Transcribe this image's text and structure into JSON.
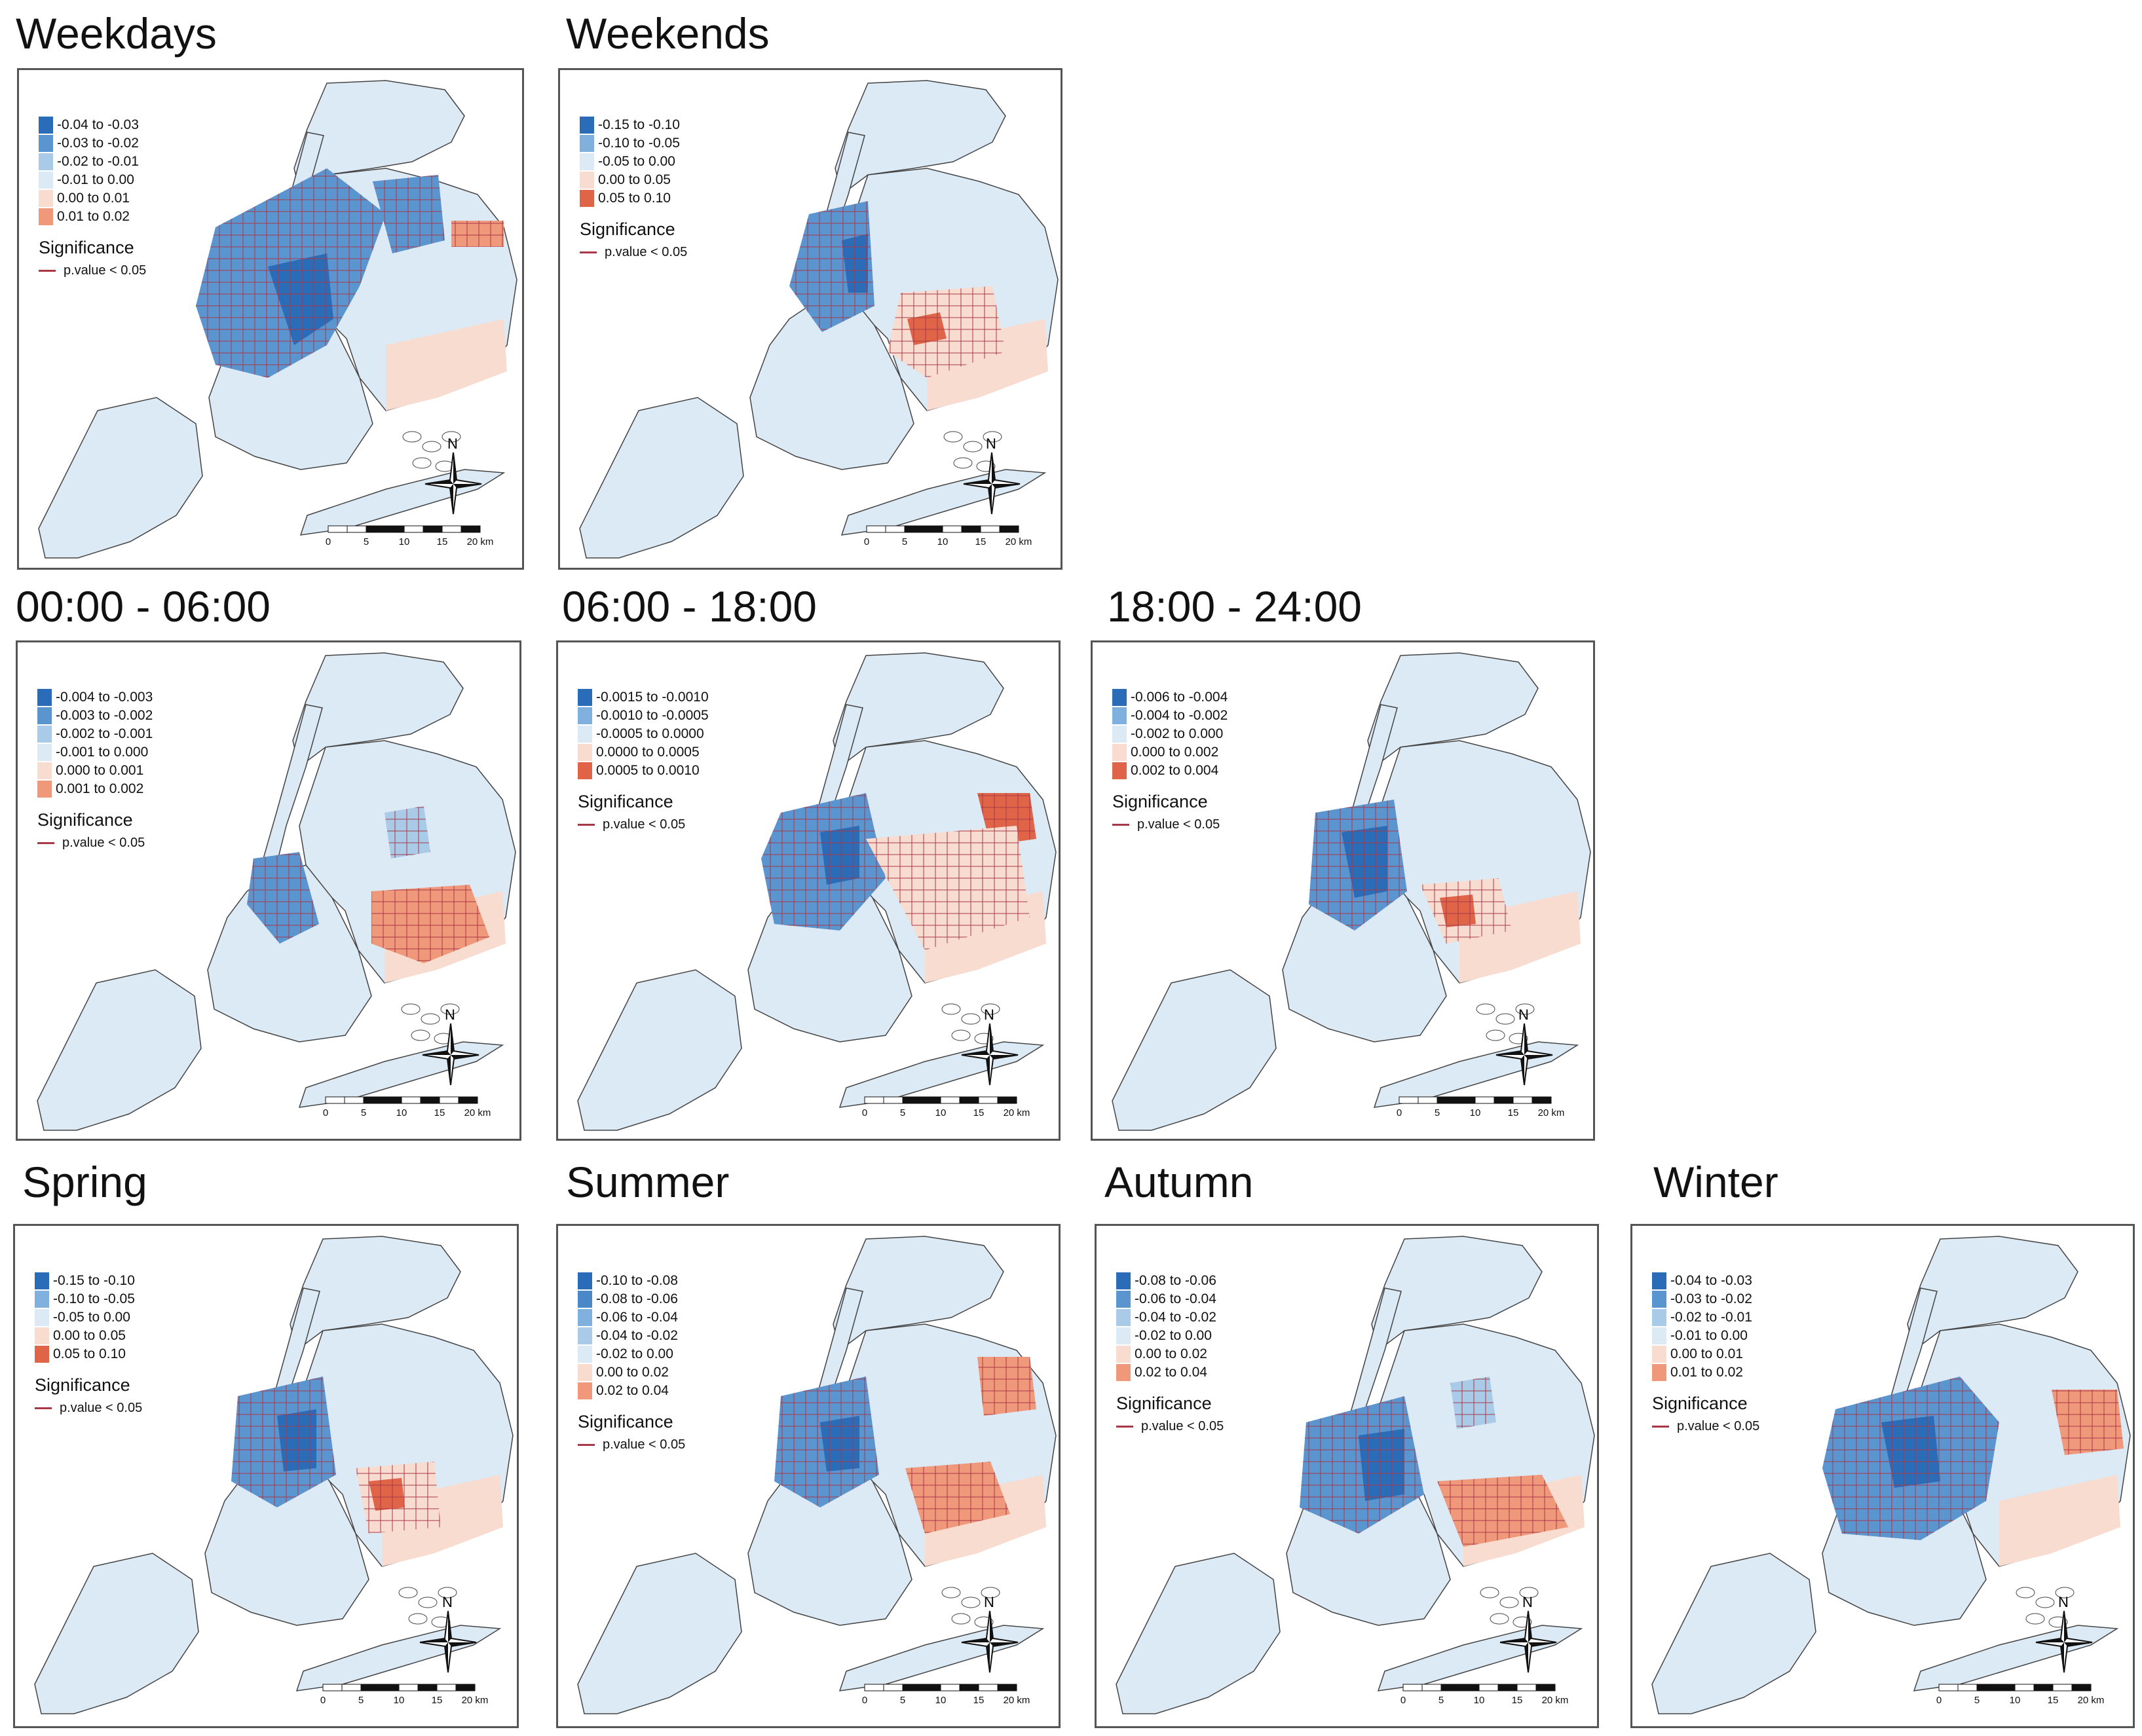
{
  "colors": {
    "blue_dark": "#2b6cb8",
    "blue_mid": "#5b95cf",
    "blue_light": "#a9cbe8",
    "blue_pale": "#dceaf5",
    "red_pale": "#f8dcd0",
    "red_mid": "#f0987a",
    "red_dark": "#e06548",
    "significance_line": "#a83848"
  },
  "common": {
    "significance_title": "Significance",
    "significance_label": "p.value < 0.05",
    "north_label": "N",
    "scale_ticks": [
      "0",
      "5",
      "10",
      "15",
      "20 km"
    ]
  },
  "panels": [
    {
      "title": "Weekdays",
      "legend": [
        {
          "label": "-0.04 to -0.03",
          "color": "#2b6cb8"
        },
        {
          "label": "-0.03 to -0.02",
          "color": "#5b95cf"
        },
        {
          "label": "-0.02 to -0.01",
          "color": "#a9cbe8"
        },
        {
          "label": "-0.01 to 0.00",
          "color": "#dceaf5"
        },
        {
          "label": "0.00 to 0.01",
          "color": "#f8dcd0"
        },
        {
          "label": "0.01 to 0.02",
          "color": "#f0987a"
        }
      ]
    },
    {
      "title": "Weekends",
      "legend": [
        {
          "label": "-0.15 to -0.10",
          "color": "#2b6cb8"
        },
        {
          "label": "-0.10 to -0.05",
          "color": "#7fb0de"
        },
        {
          "label": "-0.05 to 0.00",
          "color": "#dceaf5"
        },
        {
          "label": "0.00 to 0.05",
          "color": "#f8dcd0"
        },
        {
          "label": "0.05 to 0.10",
          "color": "#e06548"
        }
      ]
    },
    {
      "title": "00:00 - 06:00",
      "legend": [
        {
          "label": "-0.004 to -0.003",
          "color": "#2b6cb8"
        },
        {
          "label": "-0.003 to -0.002",
          "color": "#5b95cf"
        },
        {
          "label": "-0.002 to -0.001",
          "color": "#a9cbe8"
        },
        {
          "label": "-0.001 to 0.000",
          "color": "#dceaf5"
        },
        {
          "label": "0.000 to 0.001",
          "color": "#f8dcd0"
        },
        {
          "label": "0.001 to 0.002",
          "color": "#f0987a"
        }
      ]
    },
    {
      "title": "06:00 - 18:00",
      "legend": [
        {
          "label": "-0.0015 to -0.0010",
          "color": "#2b6cb8"
        },
        {
          "label": "-0.0010 to -0.0005",
          "color": "#7fb0de"
        },
        {
          "label": "-0.0005 to 0.0000",
          "color": "#dceaf5"
        },
        {
          "label": "0.0000 to 0.0005",
          "color": "#f8dcd0"
        },
        {
          "label": "0.0005 to 0.0010",
          "color": "#e06548"
        }
      ]
    },
    {
      "title": "18:00 - 24:00",
      "legend": [
        {
          "label": "-0.006 to -0.004",
          "color": "#2b6cb8"
        },
        {
          "label": "-0.004 to -0.002",
          "color": "#7fb0de"
        },
        {
          "label": "-0.002 to 0.000",
          "color": "#dceaf5"
        },
        {
          "label": "0.000 to 0.002",
          "color": "#f8dcd0"
        },
        {
          "label": "0.002 to 0.004",
          "color": "#e06548"
        }
      ]
    },
    {
      "title": "Spring",
      "legend": [
        {
          "label": "-0.15 to -0.10",
          "color": "#2b6cb8"
        },
        {
          "label": "-0.10 to -0.05",
          "color": "#7fb0de"
        },
        {
          "label": "-0.05 to 0.00",
          "color": "#dceaf5"
        },
        {
          "label": "0.00 to 0.05",
          "color": "#f8dcd0"
        },
        {
          "label": "0.05 to 0.10",
          "color": "#e06548"
        }
      ]
    },
    {
      "title": "Summer",
      "legend": [
        {
          "label": "-0.10 to -0.08",
          "color": "#2b6cb8"
        },
        {
          "label": "-0.08 to -0.06",
          "color": "#4a88c8"
        },
        {
          "label": "-0.06 to -0.04",
          "color": "#7fb0de"
        },
        {
          "label": "-0.04 to -0.02",
          "color": "#a9cbe8"
        },
        {
          "label": "-0.02 to 0.00",
          "color": "#dceaf5"
        },
        {
          "label": "0.00 to 0.02",
          "color": "#f8dcd0"
        },
        {
          "label": "0.02 to 0.04",
          "color": "#f0987a"
        }
      ]
    },
    {
      "title": "Autumn",
      "legend": [
        {
          "label": "-0.08 to -0.06",
          "color": "#2b6cb8"
        },
        {
          "label": "-0.06 to -0.04",
          "color": "#5b95cf"
        },
        {
          "label": "-0.04 to -0.02",
          "color": "#a9cbe8"
        },
        {
          "label": "-0.02 to 0.00",
          "color": "#dceaf5"
        },
        {
          "label": "0.00 to 0.02",
          "color": "#f8dcd0"
        },
        {
          "label": "0.02 to 0.04",
          "color": "#f0987a"
        }
      ]
    },
    {
      "title": "Winter",
      "legend": [
        {
          "label": "-0.04 to -0.03",
          "color": "#2b6cb8"
        },
        {
          "label": "-0.03 to -0.02",
          "color": "#5b95cf"
        },
        {
          "label": "-0.02 to -0.01",
          "color": "#a9cbe8"
        },
        {
          "label": "-0.01 to 0.00",
          "color": "#dceaf5"
        },
        {
          "label": "0.00 to 0.01",
          "color": "#f8dcd0"
        },
        {
          "label": "0.01 to 0.02",
          "color": "#f0987a"
        }
      ]
    }
  ]
}
